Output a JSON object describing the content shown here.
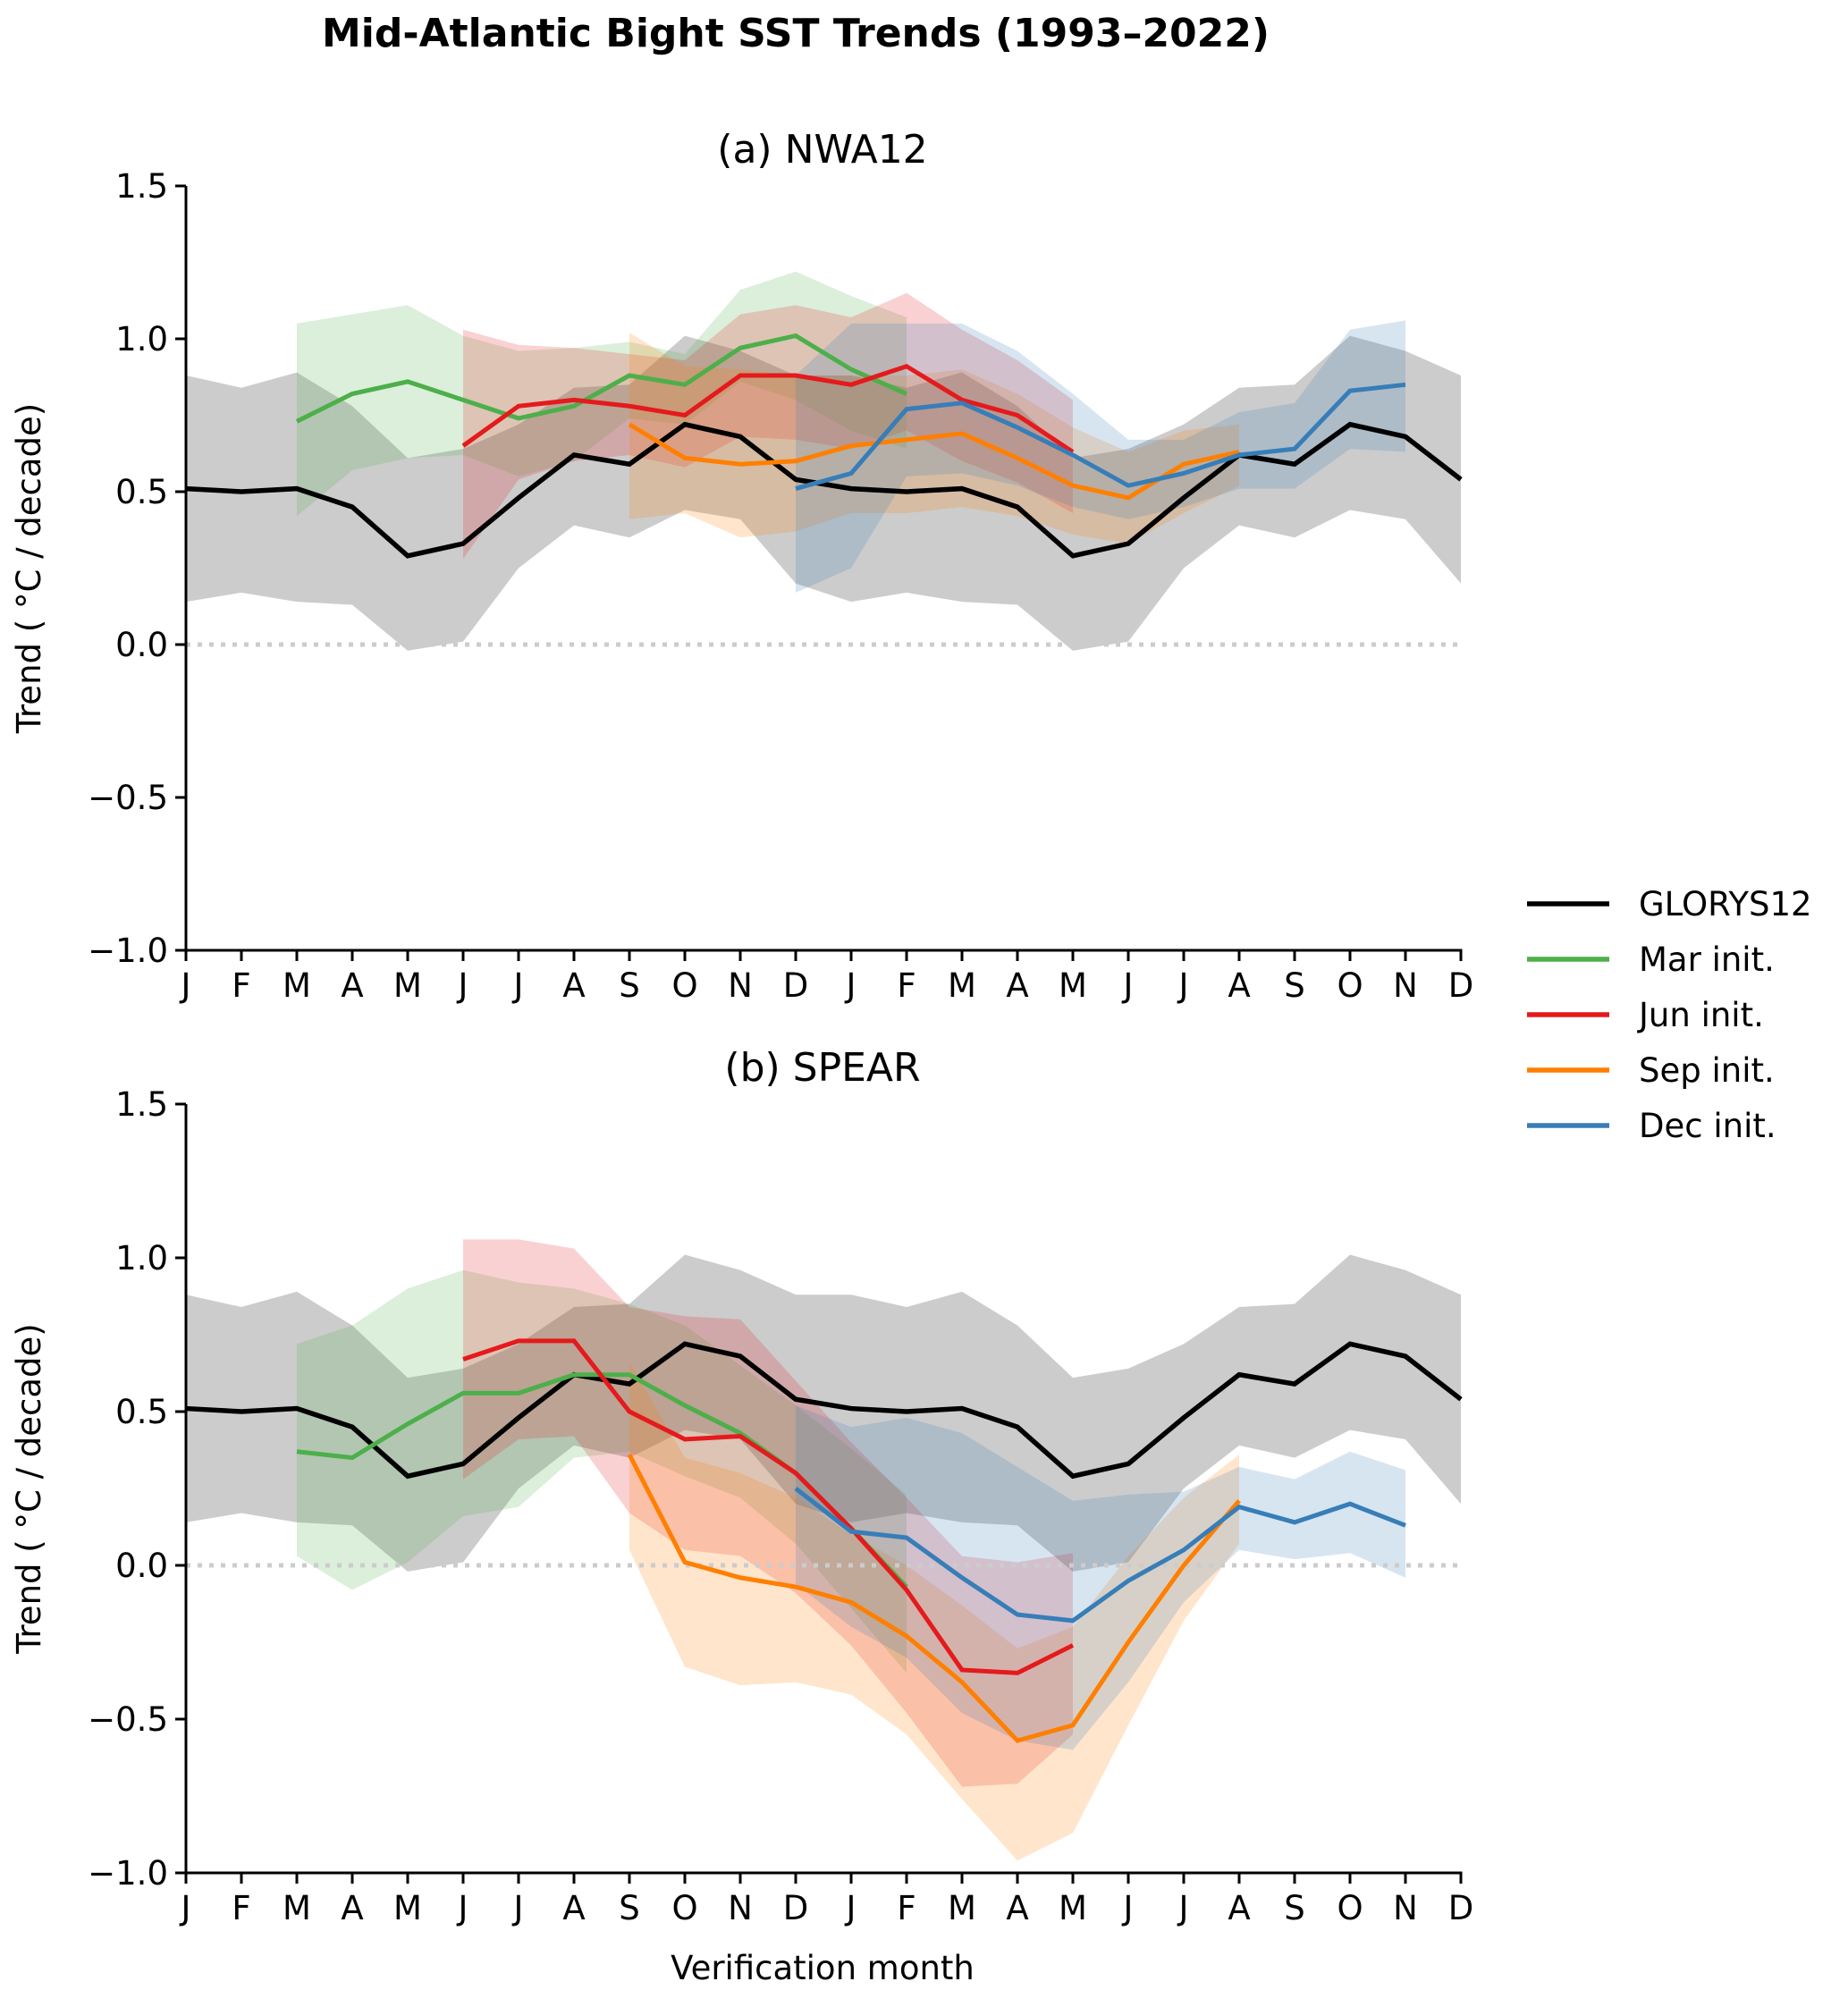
{
  "chart_data": {
    "type": "line",
    "title": "Mid-Atlantic Bight SST Trends (1993–2022)",
    "xlabel": "Verification month",
    "ylabel": "Trend ( °C / decade)",
    "x": [
      "J",
      "F",
      "M",
      "A",
      "M",
      "J",
      "J",
      "A",
      "S",
      "O",
      "N",
      "D",
      "J",
      "F",
      "M",
      "A",
      "M",
      "J",
      "J",
      "A",
      "S",
      "O",
      "N",
      "D"
    ],
    "ylim": [
      -1.0,
      1.5
    ],
    "yticks": [
      -1.0,
      -0.5,
      0.0,
      0.5,
      1.0,
      1.5
    ],
    "ytick_labels": [
      "−1.0",
      "−0.5",
      "0.0",
      "0.5",
      "1.0",
      "1.5"
    ],
    "zero_line": "dotted",
    "grid": false,
    "legend": {
      "placement": "right",
      "entries": [
        {
          "label": "GLORYS12",
          "color": "#000000"
        },
        {
          "label": "Mar init.",
          "color": "#4daf4a"
        },
        {
          "label": "Jun init.",
          "color": "#e41a1c"
        },
        {
          "label": "Sep init.",
          "color": "#ff7f00"
        },
        {
          "label": "Dec init.",
          "color": "#377eb8"
        }
      ]
    },
    "band_colors": {
      "GLORYS12": "#999999",
      "Mar init.": "#4daf4a",
      "Jun init.": "#e41a1c",
      "Sep init.": "#ff7f00",
      "Dec init.": "#377eb8"
    },
    "panels": [
      {
        "title": "(a) NWA12",
        "series": [
          {
            "name": "GLORYS12",
            "color": "#000000",
            "start": 0,
            "values": [
              0.51,
              0.5,
              0.51,
              0.45,
              0.29,
              0.33,
              0.48,
              0.62,
              0.59,
              0.72,
              0.68,
              0.54,
              0.51,
              0.5,
              0.51,
              0.45,
              0.29,
              0.33,
              0.48,
              0.62,
              0.59,
              0.72,
              0.68,
              0.54
            ],
            "upper": [
              0.88,
              0.84,
              0.89,
              0.78,
              0.61,
              0.64,
              0.72,
              0.84,
              0.85,
              1.01,
              0.96,
              0.88,
              0.88,
              0.84,
              0.89,
              0.78,
              0.61,
              0.64,
              0.72,
              0.84,
              0.85,
              1.01,
              0.96,
              0.88
            ],
            "lower": [
              0.14,
              0.17,
              0.14,
              0.13,
              -0.02,
              0.01,
              0.25,
              0.39,
              0.35,
              0.44,
              0.41,
              0.2,
              0.14,
              0.17,
              0.14,
              0.13,
              -0.02,
              0.01,
              0.25,
              0.39,
              0.35,
              0.44,
              0.41,
              0.2
            ]
          },
          {
            "name": "Mar init.",
            "color": "#4daf4a",
            "start": 2,
            "values": [
              0.73,
              0.82,
              0.86,
              0.8,
              0.74,
              0.78,
              0.88,
              0.85,
              0.97,
              1.01,
              0.9,
              0.82
            ],
            "upper": [
              1.05,
              1.08,
              1.11,
              1.01,
              0.96,
              0.97,
              0.99,
              0.95,
              1.16,
              1.22,
              1.14,
              1.07
            ],
            "lower": [
              0.42,
              0.57,
              0.61,
              0.62,
              0.55,
              0.6,
              0.74,
              0.72,
              0.86,
              0.8,
              0.7,
              0.64
            ]
          },
          {
            "name": "Jun init.",
            "color": "#e41a1c",
            "start": 5,
            "values": [
              0.65,
              0.78,
              0.8,
              0.78,
              0.75,
              0.88,
              0.88,
              0.85,
              0.91,
              0.8,
              0.75,
              0.63
            ],
            "upper": [
              1.03,
              0.98,
              0.97,
              0.95,
              0.93,
              1.08,
              1.11,
              1.07,
              1.15,
              1.03,
              0.93,
              0.8
            ],
            "lower": [
              0.28,
              0.54,
              0.6,
              0.62,
              0.58,
              0.68,
              0.67,
              0.64,
              0.7,
              0.6,
              0.53,
              0.43
            ]
          },
          {
            "name": "Sep init.",
            "color": "#ff7f00",
            "start": 8,
            "values": [
              0.72,
              0.61,
              0.59,
              0.6,
              0.65,
              0.67,
              0.69,
              0.61,
              0.52,
              0.48,
              0.59,
              0.63
            ],
            "upper": [
              1.02,
              0.91,
              0.9,
              0.88,
              0.88,
              0.88,
              0.9,
              0.82,
              0.71,
              0.63,
              0.7,
              0.72
            ],
            "lower": [
              0.41,
              0.43,
              0.35,
              0.37,
              0.43,
              0.43,
              0.45,
              0.42,
              0.36,
              0.33,
              0.43,
              0.52
            ]
          },
          {
            "name": "Dec init.",
            "color": "#377eb8",
            "start": 11,
            "values": [
              0.51,
              0.56,
              0.77,
              0.79,
              0.71,
              0.62,
              0.52,
              0.56,
              0.62,
              0.64,
              0.83,
              0.85
            ],
            "upper": [
              0.88,
              1.05,
              1.05,
              1.05,
              0.96,
              0.82,
              0.67,
              0.67,
              0.76,
              0.79,
              1.03,
              1.06
            ],
            "lower": [
              0.17,
              0.25,
              0.55,
              0.56,
              0.52,
              0.45,
              0.41,
              0.45,
              0.51,
              0.51,
              0.64,
              0.63
            ]
          }
        ]
      },
      {
        "title": "(b) SPEAR",
        "series": [
          {
            "name": "GLORYS12",
            "color": "#000000",
            "start": 0,
            "values": [
              0.51,
              0.5,
              0.51,
              0.45,
              0.29,
              0.33,
              0.48,
              0.62,
              0.59,
              0.72,
              0.68,
              0.54,
              0.51,
              0.5,
              0.51,
              0.45,
              0.29,
              0.33,
              0.48,
              0.62,
              0.59,
              0.72,
              0.68,
              0.54
            ],
            "upper": [
              0.88,
              0.84,
              0.89,
              0.78,
              0.61,
              0.64,
              0.72,
              0.84,
              0.85,
              1.01,
              0.96,
              0.88,
              0.88,
              0.84,
              0.89,
              0.78,
              0.61,
              0.64,
              0.72,
              0.84,
              0.85,
              1.01,
              0.96,
              0.88
            ],
            "lower": [
              0.14,
              0.17,
              0.14,
              0.13,
              -0.02,
              0.01,
              0.25,
              0.39,
              0.35,
              0.44,
              0.41,
              0.2,
              0.14,
              0.17,
              0.14,
              0.13,
              -0.02,
              0.01,
              0.25,
              0.39,
              0.35,
              0.44,
              0.41,
              0.2
            ]
          },
          {
            "name": "Mar init.",
            "color": "#4daf4a",
            "start": 2,
            "values": [
              0.37,
              0.35,
              0.46,
              0.56,
              0.56,
              0.62,
              0.62,
              0.52,
              0.43,
              0.3,
              0.12,
              -0.07
            ],
            "upper": [
              0.72,
              0.78,
              0.9,
              0.96,
              0.92,
              0.9,
              0.85,
              0.78,
              0.65,
              0.52,
              0.38,
              0.23
            ],
            "lower": [
              0.03,
              -0.08,
              0.01,
              0.16,
              0.19,
              0.35,
              0.37,
              0.29,
              0.22,
              0.07,
              -0.14,
              -0.35
            ]
          },
          {
            "name": "Jun init.",
            "color": "#e41a1c",
            "start": 5,
            "values": [
              0.67,
              0.73,
              0.73,
              0.5,
              0.41,
              0.42,
              0.3,
              0.12,
              -0.08,
              -0.34,
              -0.35,
              -0.26
            ],
            "upper": [
              1.06,
              1.06,
              1.03,
              0.84,
              0.81,
              0.8,
              0.6,
              0.4,
              0.22,
              0.03,
              0.01,
              0.04
            ],
            "lower": [
              0.28,
              0.41,
              0.42,
              0.17,
              0.05,
              0.03,
              -0.09,
              -0.26,
              -0.48,
              -0.72,
              -0.71,
              -0.55
            ]
          },
          {
            "name": "Sep init.",
            "color": "#ff7f00",
            "start": 8,
            "values": [
              0.36,
              0.01,
              -0.04,
              -0.07,
              -0.12,
              -0.23,
              -0.38,
              -0.57,
              -0.52,
              -0.25,
              0.0,
              0.21
            ],
            "upper": [
              0.66,
              0.35,
              0.3,
              0.22,
              0.1,
              0.0,
              -0.13,
              -0.27,
              -0.2,
              0.03,
              0.22,
              0.36
            ],
            "lower": [
              0.05,
              -0.33,
              -0.39,
              -0.38,
              -0.42,
              -0.55,
              -0.76,
              -0.96,
              -0.87,
              -0.52,
              -0.18,
              0.07
            ]
          },
          {
            "name": "Dec init.",
            "color": "#377eb8",
            "start": 11,
            "values": [
              0.25,
              0.11,
              0.09,
              -0.04,
              -0.16,
              -0.18,
              -0.05,
              0.05,
              0.19,
              0.14,
              0.2,
              0.13
            ],
            "upper": [
              0.52,
              0.45,
              0.48,
              0.43,
              0.32,
              0.21,
              0.23,
              0.24,
              0.32,
              0.28,
              0.37,
              0.31
            ],
            "lower": [
              -0.06,
              -0.2,
              -0.3,
              -0.48,
              -0.57,
              -0.6,
              -0.38,
              -0.12,
              0.05,
              0.02,
              0.04,
              -0.04
            ]
          }
        ]
      }
    ]
  }
}
